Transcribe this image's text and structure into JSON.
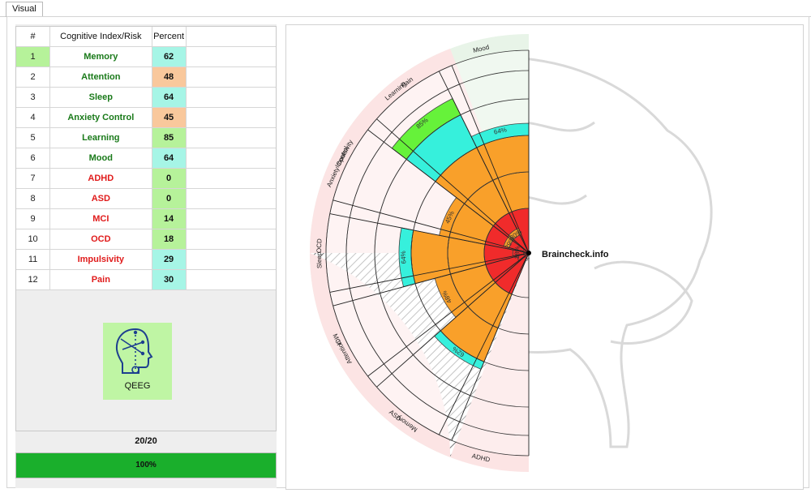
{
  "tab": {
    "label": "Visual"
  },
  "table": {
    "headers": [
      "#",
      "Cognitive Index/Risk",
      "Percent"
    ],
    "rows": [
      {
        "num": "1",
        "name": "Memory",
        "percent": "62",
        "name_color": "#1a7a1a",
        "cell_color": "#a6f5e6"
      },
      {
        "num": "2",
        "name": "Attention",
        "percent": "48",
        "name_color": "#1a7a1a",
        "cell_color": "#f9c89c"
      },
      {
        "num": "3",
        "name": "Sleep",
        "percent": "64",
        "name_color": "#1a7a1a",
        "cell_color": "#a6f5e6"
      },
      {
        "num": "4",
        "name": "Anxiety Control",
        "percent": "45",
        "name_color": "#1a7a1a",
        "cell_color": "#f9c89c"
      },
      {
        "num": "5",
        "name": "Learning",
        "percent": "85",
        "name_color": "#1a7a1a",
        "cell_color": "#b6f29a"
      },
      {
        "num": "6",
        "name": "Mood",
        "percent": "64",
        "name_color": "#1a7a1a",
        "cell_color": "#a6f5e6"
      },
      {
        "num": "7",
        "name": "ADHD",
        "percent": "0",
        "name_color": "#e01b1b",
        "cell_color": "#b6f29a"
      },
      {
        "num": "8",
        "name": "ASD",
        "percent": "0",
        "name_color": "#e01b1b",
        "cell_color": "#b6f29a"
      },
      {
        "num": "9",
        "name": "MCI",
        "percent": "14",
        "name_color": "#e01b1b",
        "cell_color": "#b6f29a"
      },
      {
        "num": "10",
        "name": "OCD",
        "percent": "18",
        "name_color": "#e01b1b",
        "cell_color": "#b6f29a"
      },
      {
        "num": "11",
        "name": "Impulsivity",
        "percent": "29",
        "name_color": "#e01b1b",
        "cell_color": "#a6f5e6"
      },
      {
        "num": "12",
        "name": "Pain",
        "percent": "30",
        "name_color": "#e01b1b",
        "cell_color": "#a6f5e6"
      }
    ],
    "selected_row_color": "#b6f29a"
  },
  "qeeg": {
    "label": "QEEG",
    "icon": "head-network-icon",
    "bg_color": "#bff5a4"
  },
  "count": "20/20",
  "progress": {
    "value": 100,
    "label": "100%",
    "color": "#1aaf2c"
  },
  "chart_data": {
    "type": "polar-bar",
    "center_label": "Braincheck.info",
    "categories": [
      "Memory",
      "Attention",
      "Sleep",
      "Anxiety Control",
      "Learning",
      "Mood",
      "ADHD",
      "ASD",
      "MCI",
      "OCD",
      "Impulsivity",
      "Pain"
    ],
    "values": [
      62,
      48,
      64,
      45,
      85,
      64,
      0,
      0,
      14,
      18,
      29,
      30
    ],
    "value_labels": [
      "62%",
      "48%",
      "64%",
      "45%",
      "85%",
      "64%",
      "",
      "",
      "14%",
      "18%",
      "29%",
      "30%"
    ],
    "groups": [
      {
        "name": "Cognitive Index",
        "categories": [
          "Memory",
          "Attention",
          "Sleep",
          "Anxiety Control",
          "Learning",
          "Mood"
        ],
        "band_color": "#e8f4e8"
      },
      {
        "name": "Risk",
        "categories": [
          "ADHD",
          "ASD",
          "MCI",
          "OCD",
          "Impulsivity",
          "Pain"
        ],
        "band_color": "#fce4e4"
      }
    ],
    "ring_colors": {
      "red": "#f02b2b",
      "orange": "#f9a02a",
      "cyan": "#36f0dc",
      "green": "#66f23a"
    },
    "rings": 4,
    "hatched_gap": true
  }
}
